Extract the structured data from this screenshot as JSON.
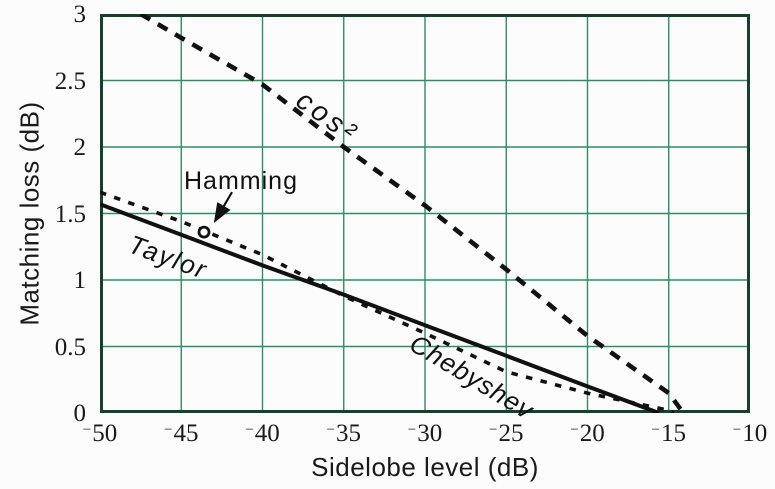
{
  "chart_data": {
    "type": "line",
    "title": "",
    "xlabel": "Sidelobe level (dB)",
    "ylabel": "Matching loss (dB)",
    "xlim": [
      -50,
      -10
    ],
    "ylim": [
      0,
      3
    ],
    "xticks": [
      -50,
      -45,
      -40,
      -35,
      -30,
      -25,
      -20,
      -15,
      -10
    ],
    "yticks": [
      0,
      0.5,
      1,
      1.5,
      2,
      2.5,
      3
    ],
    "grid": true,
    "legend_position": "inline-curve-labels",
    "colors": {
      "grid": "#2e8c67",
      "axis_frame": "#16402b",
      "curves": "#111111",
      "background": "#fcfcfc"
    },
    "series": [
      {
        "id": "cos2",
        "name": "cos²",
        "style": "dashed-bold",
        "points": [
          [
            -47.5,
            3.0
          ],
          [
            -45,
            2.82
          ],
          [
            -40,
            2.47
          ],
          [
            -35,
            2.0
          ],
          [
            -30,
            1.56
          ],
          [
            -25,
            1.08
          ],
          [
            -20,
            0.58
          ],
          [
            -15,
            0.15
          ],
          [
            -14.1,
            0
          ]
        ]
      },
      {
        "id": "taylor",
        "name": "Taylor",
        "style": "solid",
        "points": [
          [
            -50,
            1.57
          ],
          [
            -45,
            1.34
          ],
          [
            -40,
            1.11
          ],
          [
            -35,
            0.89
          ],
          [
            -30,
            0.66
          ],
          [
            -25,
            0.43
          ],
          [
            -20,
            0.2
          ],
          [
            -15.6,
            0
          ]
        ]
      },
      {
        "id": "chebyshev",
        "name": "Chebyshev",
        "style": "dashed",
        "points": [
          [
            -50,
            1.66
          ],
          [
            -45,
            1.44
          ],
          [
            -40,
            1.19
          ],
          [
            -35,
            0.88
          ],
          [
            -30,
            0.6
          ],
          [
            -25,
            0.31
          ],
          [
            -20,
            0.15
          ],
          [
            -15,
            0.02
          ],
          [
            -14.7,
            0
          ]
        ]
      }
    ],
    "point_annotation": {
      "label": "Hamming",
      "x": -43.6,
      "y": 1.36,
      "marker": "open-circle"
    }
  }
}
